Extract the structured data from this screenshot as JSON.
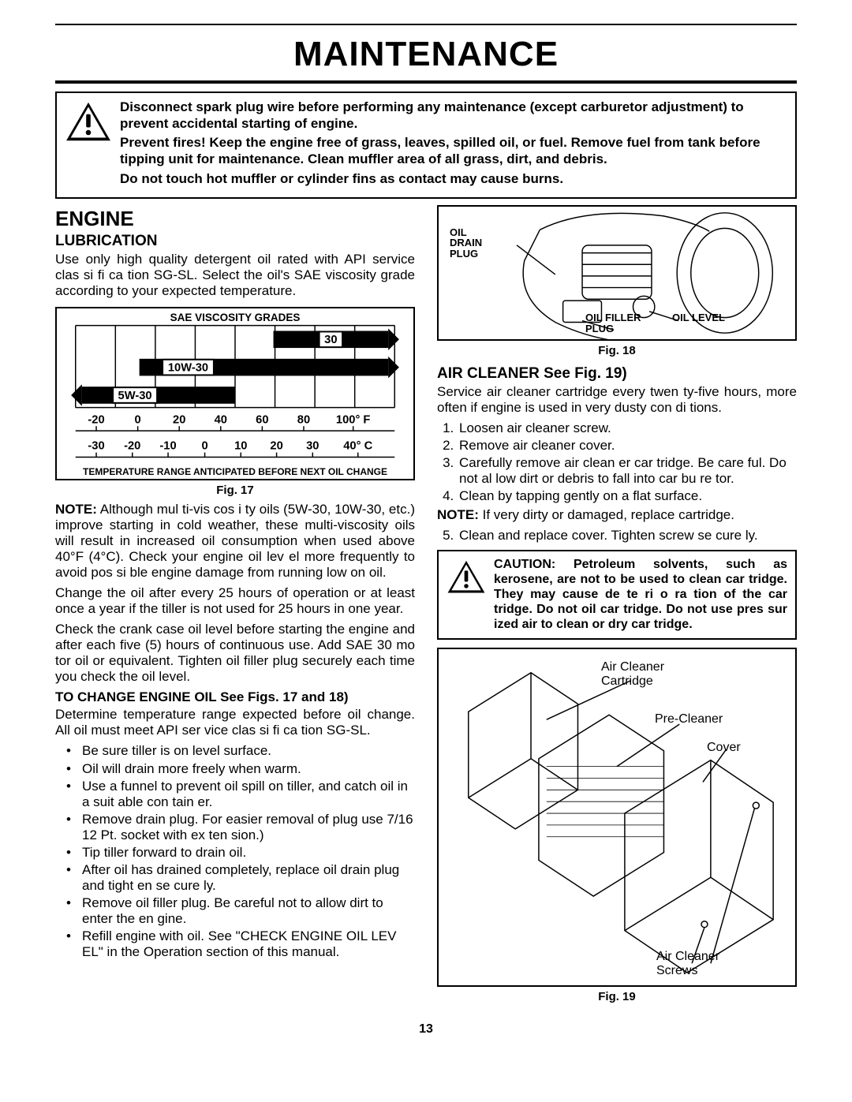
{
  "page": {
    "title": "MAINTENANCE",
    "number": "13"
  },
  "warning": {
    "p1": "Disconnect spark plug wire before performing any maintenance (except carburetor adjustment) to prevent accidental starting of engine.",
    "p2": "Prevent fires!  Keep the engine free of grass, leaves, spilled oil, or fuel.  Remove fuel from tank before tipping unit for maintenance.  Clean muffler area of all grass, dirt, and debris.",
    "p3": "Do not touch hot muffler or cylinder fins as contact may cause burns."
  },
  "left": {
    "h2": "ENGINE",
    "h3": "LUBRICATION",
    "intro": "Use only high quality detergent oil rated with API service clas si fi ca tion SG-SL.  Select the oil's SAE viscosity grade according to your expected temperature.",
    "chart": {
      "title": "SAE VISCOSITY GRADES",
      "footer": "TEMPERATURE RANGE ANTICIPATED BEFORE NEXT OIL CHANGE",
      "bars": [
        {
          "label": "30",
          "label_bg": "#ffffff",
          "x0": 0.62,
          "x1": 0.98,
          "arrow_left": false,
          "arrow_right": true
        },
        {
          "label": "10W-30",
          "label_bg": "#ffffff",
          "x0": 0.2,
          "x1": 0.98,
          "arrow_left": false,
          "arrow_right": true
        },
        {
          "label": "5W-30",
          "label_bg": "#ffffff",
          "x0": 0.02,
          "x1": 0.5,
          "arrow_left": true,
          "arrow_right": false
        }
      ],
      "f_row": {
        "labels": [
          "-20",
          "0",
          "20",
          "40",
          "60",
          "80",
          "100°  F"
        ],
        "positions": [
          0.065,
          0.195,
          0.325,
          0.455,
          0.585,
          0.715,
          0.87
        ]
      },
      "c_row": {
        "labels": [
          "-30",
          "-20",
          "-10",
          "0",
          "10",
          "20",
          "30",
          "40°  C"
        ],
        "positions": [
          0.065,
          0.178,
          0.29,
          0.405,
          0.518,
          0.63,
          0.743,
          0.885
        ]
      },
      "bar_color": "#000000",
      "grid_color": "#000000",
      "background": "#ffffff"
    },
    "fig17_caption": "Fig. 17",
    "note1_label": "NOTE:",
    "note1": " Although mul ti-vis cos i ty oils (5W-30, 10W-30, etc.) improve starting in cold weather, these multi-viscosity oils will result in increased oil consumption when used above 40°F (4°C).  Check your engine oil lev el more frequently to avoid pos si ble engine damage from running low on oil.",
    "p_change": "Change the oil after every 25 hours of operation or at least once a year if the tiller is not used for 25 hours in one year.",
    "p_check": "Check the crank case oil level before starting the engine and after each five (5) hours of continuous use.  Add SAE 30 mo tor oil or equivalent.  Tighten oil filler plug securely each time you check the oil level.",
    "h_change": "TO CHANGE ENGINE OIL See Figs. 17 and 18)",
    "p_det": "Determine temperature range expected before oil change.  All oil must  meet API ser vice clas si fi ca tion SG-SL.",
    "bullets": [
      "Be sure tiller is on level surface.",
      "Oil will drain more freely when warm.",
      "Use a funnel to prevent oil spill on tiller, and catch oil in a suit able con tain er.",
      "Remove drain plug. For easier removal of plug use 7/16 12 Pt. socket with ex ten sion.)",
      "Tip tiller forward to drain oil.",
      "After oil has drained completely, replace oil drain plug and tight en se cure ly.",
      "Remove oil filler plug.  Be careful not to allow dirt to enter the en gine.",
      "Refill engine with oil.  See \"CHECK ENGINE OIL LEV EL\" in the Operation section of this manual."
    ]
  },
  "right": {
    "fig18": {
      "labels": {
        "drain": "OIL\nDRAIN\nPLUG",
        "filler": "OIL FILLER\nPLUG",
        "level": "OIL LEVEL"
      },
      "caption": "Fig. 18"
    },
    "h3_air": "AIR CLEANER See Fig. 19)",
    "p_air": "Service air cleaner cartridge every twen ty-five hours, more often if engine is used in very dusty con di tions.",
    "steps": [
      "Loosen air cleaner screw.",
      "Remove air cleaner cover.",
      "Carefully remove air clean er car tridge. Be care ful. Do not al low dirt or debris to fall into car bu re tor.",
      "Clean by tapping gently on a flat surface."
    ],
    "note_label": "NOTE:",
    "note": " If very dirty or damaged, replace cartridge.",
    "step5": "Clean and replace cover. Tighten screw se cure ly.",
    "caution": "CAUTION:  Petroleum solvents, such as kerosene, are not to be used to clean car tridge.  They may cause de te ri o ra tion of the car tridge.  Do not oil car tridge.  Do not use pres sur ized air to clean or dry car tridge.",
    "fig19": {
      "labels": {
        "cartridge": "Air Cleaner\nCartridge",
        "precleaner": "Pre-Cleaner",
        "cover": "Cover",
        "screws": "Air Cleaner\nScrews"
      },
      "caption": "Fig. 19"
    }
  }
}
